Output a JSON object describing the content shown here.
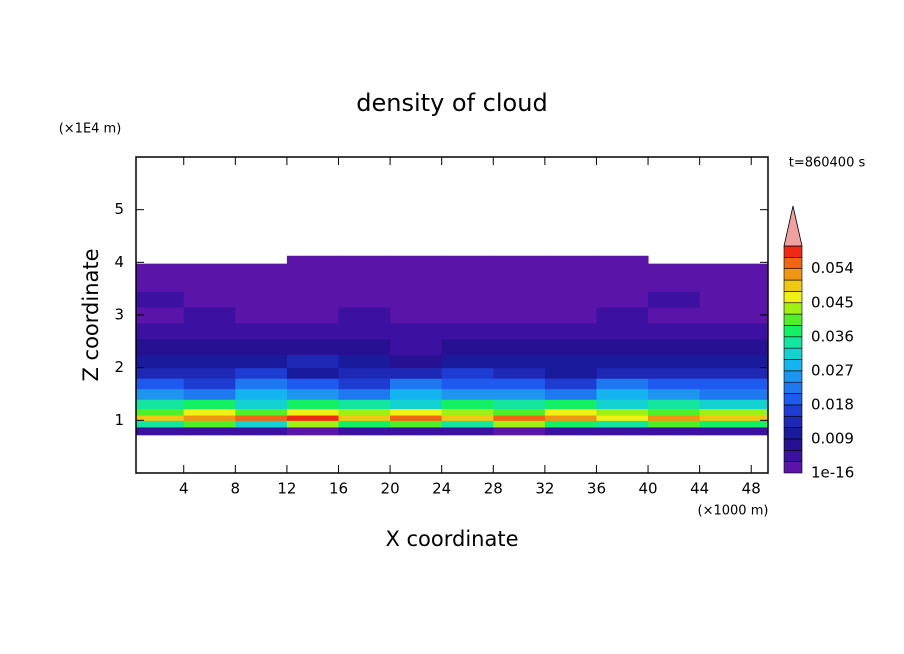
{
  "chart_data": {
    "type": "contour",
    "title": "density of cloud",
    "subtitle": "t=860400 s",
    "xlabel": "X coordinate",
    "ylabel": "Z coordinate",
    "x_unit": "(×1000 m)",
    "y_unit": "(×1E4 m)",
    "xlim": [
      0.3,
      49.3
    ],
    "ylim": [
      0,
      6
    ],
    "xticks": [
      4,
      8,
      12,
      16,
      20,
      24,
      28,
      32,
      36,
      40,
      44,
      48
    ],
    "yticks": [
      1,
      2,
      3,
      4,
      5
    ],
    "x": [
      2,
      6,
      10,
      14,
      18,
      22,
      26,
      30,
      34,
      38,
      42,
      46
    ],
    "y": [
      0.8,
      0.95,
      1.05,
      1.15,
      1.3,
      1.5,
      1.7,
      1.9,
      2.1,
      2.4,
      2.7,
      3.0,
      3.3,
      3.6,
      3.9,
      4.05
    ],
    "z": [
      [
        0.004,
        0.003,
        0.004,
        0.002,
        0.003,
        0.004,
        0.003,
        0.002,
        0.004,
        0.003,
        0.004,
        0.003
      ],
      [
        0.034,
        0.04,
        0.031,
        0.043,
        0.037,
        0.04,
        0.035,
        0.042,
        0.038,
        0.033,
        0.041,
        0.036
      ],
      [
        0.048,
        0.052,
        0.055,
        0.058,
        0.05,
        0.054,
        0.049,
        0.056,
        0.051,
        0.047,
        0.053,
        0.05
      ],
      [
        0.041,
        0.045,
        0.04,
        0.047,
        0.043,
        0.046,
        0.044,
        0.04,
        0.045,
        0.042,
        0.039,
        0.044
      ],
      [
        0.033,
        0.036,
        0.03,
        0.038,
        0.034,
        0.031,
        0.036,
        0.033,
        0.037,
        0.03,
        0.035,
        0.032
      ],
      [
        0.026,
        0.023,
        0.028,
        0.025,
        0.021,
        0.027,
        0.024,
        0.026,
        0.022,
        0.028,
        0.025,
        0.023
      ],
      [
        0.02,
        0.017,
        0.022,
        0.019,
        0.016,
        0.021,
        0.018,
        0.02,
        0.017,
        0.022,
        0.019,
        0.018
      ],
      [
        0.014,
        0.012,
        0.015,
        0.011,
        0.013,
        0.012,
        0.015,
        0.013,
        0.011,
        0.014,
        0.012,
        0.013
      ],
      [
        0.01,
        0.011,
        0.009,
        0.012,
        0.01,
        0.008,
        0.011,
        0.01,
        0.009,
        0.011,
        0.01,
        0.009
      ],
      [
        0.007,
        0.006,
        0.008,
        0.006,
        0.007,
        0.005,
        0.007,
        0.006,
        0.008,
        0.006,
        0.007,
        0.006
      ],
      [
        0.004,
        0.005,
        0.004,
        0.003,
        0.005,
        0.004,
        0.004,
        0.005,
        0.003,
        0.004,
        0.005,
        0.004
      ],
      [
        0.002,
        0.003,
        0.002,
        0.002,
        0.003,
        0.002,
        0.001,
        0.002,
        0.002,
        0.003,
        0.002,
        0.002
      ],
      [
        0.003,
        0.002,
        0.001,
        0.002,
        0.001,
        0.001,
        0.002,
        0.001,
        0.001,
        0.002,
        0.003,
        0.002
      ],
      [
        0.001,
        0.001,
        0.001,
        0.001,
        0.001,
        0.001,
        0.001,
        0.001,
        0.001,
        0.001,
        0.001,
        0.001
      ],
      [
        0.0005,
        0.0005,
        0.0005,
        0.0005,
        0.0005,
        0.0005,
        0.0005,
        0.0005,
        0.0005,
        0.0005,
        0.0005,
        0.0005
      ],
      [
        null,
        null,
        null,
        0.0005,
        0.0005,
        0.0005,
        0.0005,
        0.0005,
        0.0005,
        0.0005,
        null,
        null
      ]
    ],
    "levels": [
      1e-16,
      0.003,
      0.006,
      0.009,
      0.012,
      0.015,
      0.018,
      0.021,
      0.024,
      0.027,
      0.03,
      0.033,
      0.036,
      0.039,
      0.042,
      0.045,
      0.048,
      0.051,
      0.054,
      0.057,
      0.06
    ],
    "colors": [
      "#5a14a8",
      "#3c10a0",
      "#281092",
      "#1a1a9c",
      "#1e28b4",
      "#1e3cd2",
      "#1e5af0",
      "#1e78f0",
      "#1e96f0",
      "#14b4f0",
      "#14d2d2",
      "#14e6a0",
      "#14f064",
      "#50f028",
      "#a0f014",
      "#f0f014",
      "#f0c814",
      "#f09614",
      "#f06414",
      "#f02814"
    ],
    "extend_color": "#f0a0a0",
    "colorbar_ticks": [
      {
        "value": 1e-16,
        "label": "1e-16"
      },
      0.009,
      0.018,
      0.027,
      0.036,
      0.045,
      0.054
    ]
  }
}
